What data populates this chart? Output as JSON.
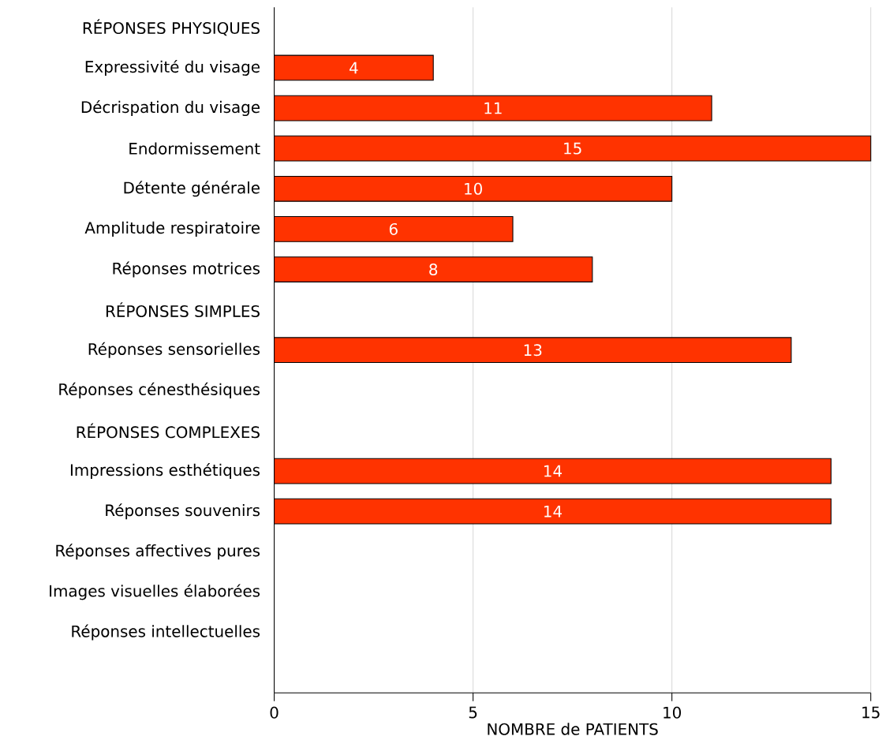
{
  "chart_data": {
    "type": "bar",
    "orientation": "horizontal",
    "xlabel": "NOMBRE de PATIENTS",
    "categories": [
      "RÉPONSES PHYSIQUES",
      "Expressivité du visage",
      "Décrispation du visage",
      "Endormissement",
      "Détente générale",
      "Amplitude respiratoire",
      "Réponses motrices",
      "RÉPONSES SIMPLES",
      "Réponses sensorielles",
      "Réponses cénesthésiques",
      "RÉPONSES COMPLEXES",
      "Impressions esthétiques",
      "Réponses souvenirs",
      "Réponses affectives pures",
      "Images visuelles élaborées",
      "Réponses intellectuelles",
      null
    ],
    "values": [
      null,
      4,
      11,
      15,
      10,
      6,
      8,
      null,
      13,
      null,
      null,
      14,
      14,
      null,
      null,
      null,
      null
    ],
    "color": "#ff3300",
    "xlim": [
      0,
      15
    ],
    "xticks": [
      0,
      5,
      10,
      15
    ],
    "grid": "x",
    "data_labels": true
  }
}
